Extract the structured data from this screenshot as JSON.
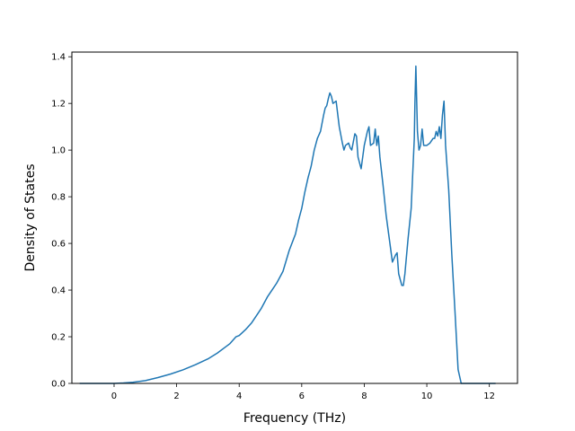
{
  "chart_data": {
    "type": "line",
    "title": "",
    "xlabel": "Frequency (THz)",
    "ylabel": "Density of States",
    "xlim": [
      -1.35,
      12.9
    ],
    "ylim": [
      0.0,
      1.42
    ],
    "xticks": [
      0,
      2,
      4,
      6,
      8,
      10,
      12
    ],
    "xtick_labels": [
      "0",
      "2",
      "4",
      "6",
      "8",
      "10",
      "12"
    ],
    "yticks": [
      0.0,
      0.2,
      0.4,
      0.6,
      0.8,
      1.0,
      1.2,
      1.4
    ],
    "ytick_labels": [
      "0.0",
      "0.2",
      "0.4",
      "0.6",
      "0.8",
      "1.0",
      "1.2",
      "1.4"
    ],
    "grid": false,
    "line_color": "#1f77b4",
    "series": [
      {
        "x": [
          -1.1,
          -0.5,
          0.0,
          0.3,
          0.6,
          1.0,
          1.4,
          1.8,
          2.2,
          2.6,
          3.0,
          3.3,
          3.6,
          3.7,
          3.9,
          4.0,
          4.2,
          4.4,
          4.6,
          4.7,
          4.9,
          5.1,
          5.2,
          5.4,
          5.6,
          5.8,
          5.9,
          6.0,
          6.1,
          6.2,
          6.3,
          6.4,
          6.5,
          6.6,
          6.7,
          6.75,
          6.8,
          6.85,
          6.9,
          6.95,
          7.0,
          7.1,
          7.2,
          7.3,
          7.35,
          7.4,
          7.5,
          7.55,
          7.6,
          7.7,
          7.75,
          7.8,
          7.9,
          8.0,
          8.1,
          8.15,
          8.2,
          8.3,
          8.35,
          8.4,
          8.45,
          8.5,
          8.6,
          8.7,
          8.8,
          8.9,
          9.0,
          9.05,
          9.1,
          9.2,
          9.25,
          9.3,
          9.4,
          9.5,
          9.6,
          9.62,
          9.65,
          9.7,
          9.75,
          9.8,
          9.85,
          9.9,
          10.0,
          10.1,
          10.2,
          10.25,
          10.3,
          10.35,
          10.4,
          10.45,
          10.5,
          10.55,
          10.6,
          10.7,
          10.8,
          10.9,
          11.0,
          11.1,
          11.5,
          12.2
        ],
        "y": [
          0.0,
          0.0,
          0.0,
          0.002,
          0.005,
          0.012,
          0.025,
          0.04,
          0.058,
          0.08,
          0.105,
          0.13,
          0.16,
          0.17,
          0.2,
          0.205,
          0.23,
          0.26,
          0.3,
          0.32,
          0.37,
          0.41,
          0.43,
          0.48,
          0.57,
          0.64,
          0.7,
          0.75,
          0.82,
          0.88,
          0.93,
          1.0,
          1.05,
          1.08,
          1.15,
          1.18,
          1.19,
          1.22,
          1.245,
          1.23,
          1.2,
          1.21,
          1.1,
          1.03,
          1.0,
          1.02,
          1.03,
          1.01,
          1.0,
          1.07,
          1.06,
          0.97,
          0.92,
          1.02,
          1.08,
          1.1,
          1.02,
          1.03,
          1.09,
          1.02,
          1.06,
          0.97,
          0.85,
          0.72,
          0.62,
          0.52,
          0.55,
          0.56,
          0.47,
          0.42,
          0.42,
          0.47,
          0.62,
          0.75,
          1.05,
          1.2,
          1.36,
          1.08,
          1.0,
          1.02,
          1.09,
          1.02,
          1.02,
          1.03,
          1.05,
          1.05,
          1.08,
          1.06,
          1.1,
          1.05,
          1.15,
          1.21,
          1.02,
          0.83,
          0.55,
          0.31,
          0.06,
          0.0,
          0.0,
          0.0
        ]
      }
    ]
  }
}
